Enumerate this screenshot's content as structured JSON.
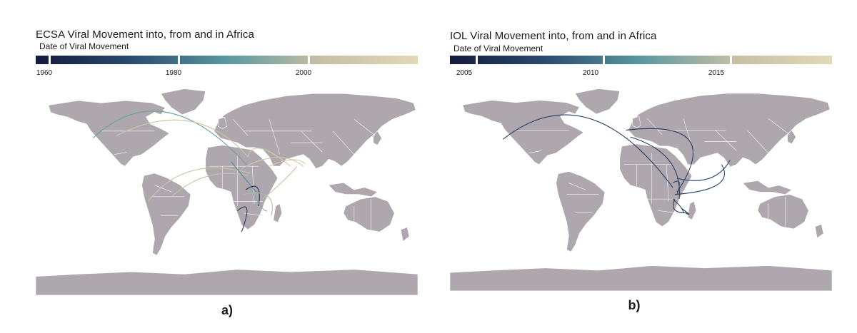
{
  "panels": [
    {
      "id": "a",
      "title": "ECSA Viral Movement into, from and in Africa",
      "legend_title": "Date of Viral Movement",
      "color_scale": {
        "min_year": 1958,
        "max_year": 2017,
        "ticks": [
          1960,
          1980,
          2000
        ]
      },
      "sub_label": "a)"
    },
    {
      "id": "b",
      "title": "IOL Viral Movement into, from and in Africa",
      "legend_title": "Date of Viral Movement",
      "color_scale": {
        "min_year": 2004,
        "max_year": 2019,
        "ticks": [
          2005,
          2010,
          2015
        ]
      },
      "sub_label": "b)"
    }
  ],
  "colors": {
    "land": "#aea7ae",
    "border": "#ffffff",
    "gradient": [
      "#131b3b",
      "#2a4a70",
      "#5a98a0",
      "#c8c0a4",
      "#e3d8b6"
    ]
  }
}
